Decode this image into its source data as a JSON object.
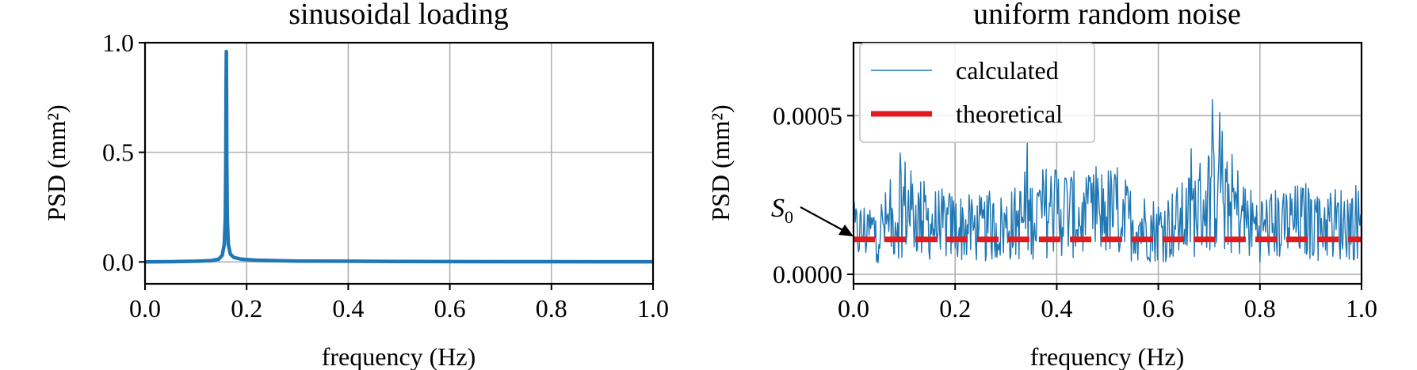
{
  "chart_data": [
    {
      "type": "line",
      "title": "sinusoidal loading",
      "xlabel": "frequency (Hz)",
      "ylabel": "PSD (mm²)",
      "xlim": [
        0.0,
        1.0
      ],
      "ylim": [
        -0.1,
        1.0
      ],
      "xticks": [
        0.0,
        0.2,
        0.4,
        0.6,
        0.8,
        1.0
      ],
      "xtick_labels": [
        "0.0",
        "0.2",
        "0.4",
        "0.6",
        "0.8",
        "1.0"
      ],
      "yticks": [
        0.0,
        0.5,
        1.0
      ],
      "ytick_labels": [
        "0.0",
        "0.5",
        "1.0"
      ],
      "grid": true,
      "series": [
        {
          "color": "#1f77b4",
          "x": [
            0.0,
            0.05,
            0.1,
            0.13,
            0.145,
            0.152,
            0.156,
            0.158,
            0.159,
            0.1595,
            0.16,
            0.1605,
            0.161,
            0.162,
            0.164,
            0.168,
            0.175,
            0.19,
            0.22,
            0.3,
            0.4,
            0.5,
            0.6,
            0.7,
            0.8,
            0.9,
            1.0
          ],
          "y": [
            0.0,
            0.001,
            0.003,
            0.006,
            0.012,
            0.03,
            0.08,
            0.2,
            0.45,
            0.75,
            0.96,
            0.75,
            0.45,
            0.2,
            0.08,
            0.035,
            0.02,
            0.012,
            0.008,
            0.004,
            0.003,
            0.002,
            0.0015,
            0.001,
            0.001,
            0.0008,
            0.0005
          ]
        }
      ]
    },
    {
      "type": "line",
      "title": "uniform random noise",
      "xlabel": "frequency (Hz)",
      "ylabel": "PSD (mm²)",
      "xlim": [
        0.0,
        1.0
      ],
      "ylim": [
        -3e-05,
        0.00073
      ],
      "xticks": [
        0.0,
        0.2,
        0.4,
        0.6,
        0.8,
        1.0
      ],
      "xtick_labels": [
        "0.0",
        "0.2",
        "0.4",
        "0.6",
        "0.8",
        "1.0"
      ],
      "yticks": [
        0.0,
        0.0005
      ],
      "ytick_labels": [
        "0.0000",
        "0.0005"
      ],
      "grid": true,
      "legend": {
        "position": "upper-left",
        "entries": [
          "calculated",
          "theoretical"
        ]
      },
      "annotation": "S0",
      "series": [
        {
          "name": "calculated",
          "color": "#1f77b4",
          "x": [
            0.0,
            0.05,
            0.08,
            0.1,
            0.12,
            0.15,
            0.2,
            0.25,
            0.3,
            0.35,
            0.38,
            0.4,
            0.42,
            0.45,
            0.48,
            0.5,
            0.52,
            0.55,
            0.6,
            0.65,
            0.7,
            0.72,
            0.74,
            0.78,
            0.8,
            0.85,
            0.9,
            0.95,
            1.0
          ],
          "y": [
            0.00013,
            0.00014,
            0.00017,
            0.00022,
            0.00019,
            0.00016,
            0.00015,
            0.00014,
            0.00015,
            0.00018,
            0.0002,
            0.00021,
            0.0002,
            0.00017,
            0.00019,
            0.0002,
            0.00019,
            0.00016,
            0.00014,
            0.00017,
            0.00024,
            0.00028,
            0.00023,
            0.00016,
            0.00015,
            0.00016,
            0.00017,
            0.00016,
            0.00017
          ]
        },
        {
          "name": "theoretical",
          "color": "#e41a1c",
          "x": [
            0.0,
            1.0
          ],
          "y": [
            0.00011,
            0.00011
          ]
        }
      ]
    }
  ]
}
